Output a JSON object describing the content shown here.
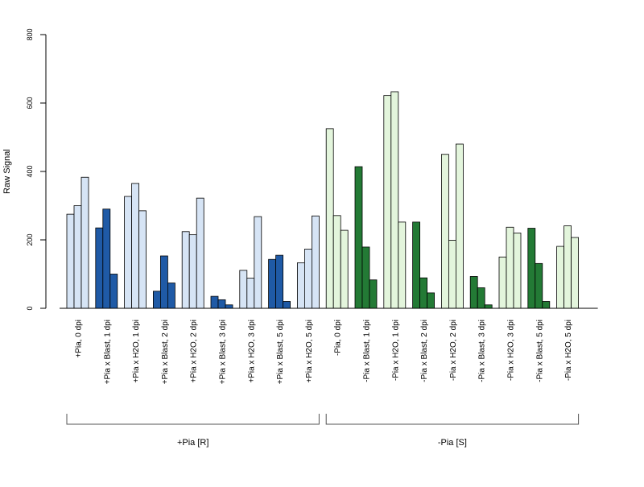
{
  "chart_data": {
    "type": "bar",
    "ylabel": "Raw Signal",
    "xlabel": "",
    "ylim": [
      0,
      800
    ],
    "yticks": [
      0,
      200,
      400,
      600,
      800
    ],
    "grid": false,
    "legend": "none",
    "colors": {
      "plus_light": "#d6e4f5",
      "plus_dark": "#1f5aa6",
      "minus_light": "#e3f5dc",
      "minus_dark": "#237a35",
      "stroke": "#000000",
      "axis": "#000000",
      "bracket": "#555555"
    },
    "categories": [
      "+Pia, 0 dpi",
      "+Pia x Blast, 1 dpi",
      "+Pia x H2O, 1 dpi",
      "+Pia x Blast, 2 dpi",
      "+Pia x H2O, 2 dpi",
      "+Pia x Blast, 3 dpi",
      "+Pia x H2O, 3 dpi",
      "+Pia x Blast, 5 dpi",
      "+Pia x H2O, 5 dpi",
      "-Pia, 0 dpi",
      "-Pia x Blast, 1 dpi",
      "-Pia x H2O, 1 dpi",
      "-Pia x Blast, 2 dpi",
      "-Pia x H2O, 2 dpi",
      "-Pia x Blast, 3 dpi",
      "-Pia x H2O, 3 dpi",
      "-Pia x Blast, 5 dpi",
      "-Pia x H2O, 5 dpi"
    ],
    "shades": [
      "light",
      "dark",
      "light",
      "dark",
      "light",
      "dark",
      "light",
      "dark",
      "light",
      "light",
      "dark",
      "light",
      "dark",
      "light",
      "dark",
      "light",
      "dark",
      "light"
    ],
    "values": [
      [
        275,
        300,
        383
      ],
      [
        235,
        290,
        100
      ],
      [
        327,
        365,
        285
      ],
      [
        50,
        153,
        74
      ],
      [
        224,
        215,
        322
      ],
      [
        35,
        25,
        10
      ],
      [
        111,
        88,
        268
      ],
      [
        143,
        155,
        20
      ],
      [
        133,
        173,
        270
      ],
      [
        525,
        271,
        228
      ],
      [
        414,
        179,
        83
      ],
      [
        622,
        633,
        252
      ],
      [
        252,
        89,
        45
      ],
      [
        450,
        199,
        480
      ],
      [
        93,
        60,
        10
      ],
      [
        150,
        237,
        220
      ],
      [
        234,
        131,
        20
      ],
      [
        181,
        241,
        207
      ]
    ],
    "groups": [
      {
        "label": "+Pia [R]",
        "start": 0,
        "end": 8
      },
      {
        "label": "-Pia [S]",
        "start": 9,
        "end": 17
      }
    ]
  }
}
